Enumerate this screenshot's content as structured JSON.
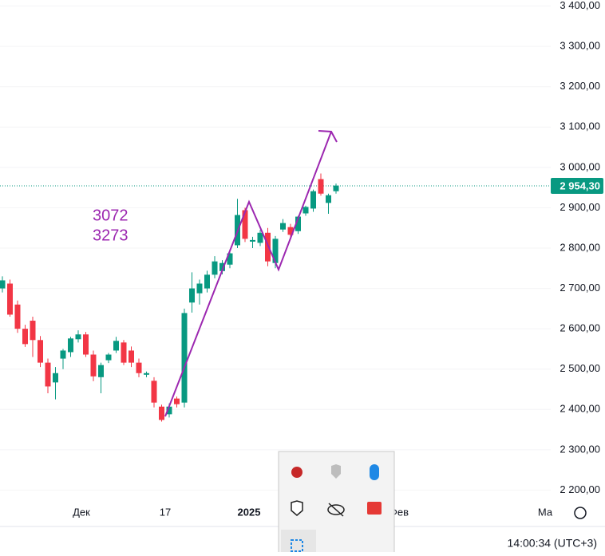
{
  "chart_data": {
    "type": "candlestick",
    "annotations": [
      "3072",
      "3273"
    ],
    "xlabels": [
      "Дек",
      "17",
      "2025",
      "Фев",
      "Ма"
    ],
    "up_color": "#089981",
    "down_color": "#f23645",
    "open": [
      2700,
      2712,
      2660,
      2600,
      2620,
      2572,
      2516,
      2467,
      2526,
      2542,
      2574,
      2586,
      2536,
      2480,
      2522,
      2546,
      2566,
      2546,
      2516,
      2486,
      2471,
      2407,
      2388,
      2427,
      2417,
      2665,
      2688,
      2700,
      2734,
      2743,
      2759,
      2807,
      2894,
      2816,
      2813,
      2838,
      2763,
      2846,
      2852,
      2842,
      2886,
      2898,
      2971,
      2912,
      2941
    ],
    "high": [
      2730,
      2722,
      2670,
      2610,
      2630,
      2582,
      2526,
      2505,
      2550,
      2580,
      2596,
      2592,
      2546,
      2516,
      2540,
      2580,
      2572,
      2556,
      2526,
      2494,
      2480,
      2412,
      2415,
      2432,
      2650,
      2740,
      2722,
      2744,
      2780,
      2770,
      2795,
      2922,
      2900,
      2828,
      2845,
      2850,
      2830,
      2872,
      2860,
      2880,
      2905,
      2945,
      2985,
      2935,
      2960
    ],
    "low": [
      2690,
      2630,
      2590,
      2555,
      2530,
      2505,
      2440,
      2425,
      2500,
      2530,
      2566,
      2530,
      2470,
      2440,
      2515,
      2540,
      2510,
      2505,
      2480,
      2480,
      2405,
      2370,
      2380,
      2405,
      2405,
      2640,
      2660,
      2690,
      2725,
      2735,
      2750,
      2800,
      2815,
      2800,
      2805,
      2755,
      2750,
      2840,
      2825,
      2835,
      2880,
      2890,
      2930,
      2885,
      2935
    ],
    "close": [
      2720,
      2635,
      2600,
      2562,
      2572,
      2516,
      2457,
      2490,
      2546,
      2576,
      2586,
      2536,
      2482,
      2510,
      2536,
      2570,
      2516,
      2516,
      2490,
      2490,
      2417,
      2374,
      2407,
      2413,
      2639,
      2700,
      2712,
      2734,
      2767,
      2763,
      2787,
      2882,
      2823,
      2820,
      2838,
      2767,
      2823,
      2862,
      2833,
      2878,
      2902,
      2941,
      2935,
      2931,
      2955
    ],
    "last_price": {
      "value": 2954.3,
      "label": "2 954,30"
    },
    "ylim": [
      2185,
      3415
    ],
    "yticks": [
      {
        "value": 2200,
        "label": "2 200,00"
      },
      {
        "value": 2300,
        "label": "2 300,00"
      },
      {
        "value": 2400,
        "label": "2 400,00"
      },
      {
        "value": 2500,
        "label": "2 500,00"
      },
      {
        "value": 2600,
        "label": "2 600,00"
      },
      {
        "value": 2700,
        "label": "2 700,00"
      },
      {
        "value": 2800,
        "label": "2 800,00"
      },
      {
        "value": 2900,
        "label": "2 900,00"
      },
      {
        "value": 3000,
        "label": "3 000,00"
      },
      {
        "value": 3100,
        "label": "3 100,00"
      },
      {
        "value": 3200,
        "label": "3 200,00"
      },
      {
        "value": 3300,
        "label": "3 300,00"
      },
      {
        "value": 3400,
        "label": "3 400,00"
      }
    ],
    "grid": true
  },
  "status_bar": {
    "time": "14:00:34 (UTC+3)"
  }
}
